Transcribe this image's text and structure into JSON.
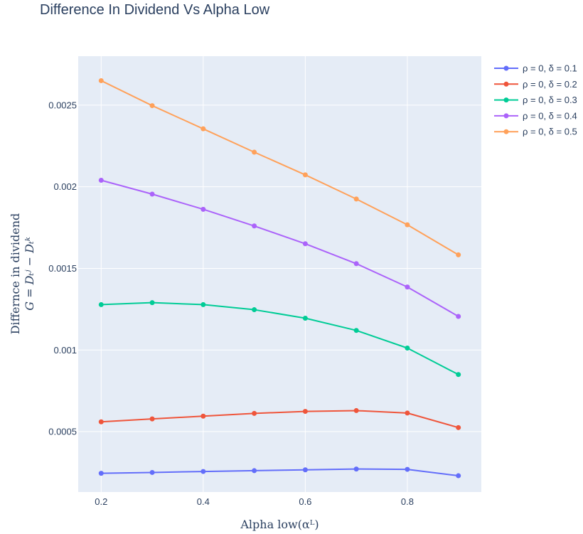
{
  "chart_data": {
    "type": "line",
    "title": "Difference In Dividend Vs Alpha Low",
    "xlabel": "Alpha low(αᴸ)",
    "ylabel_line1": "Differnce in dividend",
    "ylabel_line2": "G = Dₜʲ − Dₜᵏ",
    "x": [
      0.2,
      0.3,
      0.4,
      0.5,
      0.6,
      0.7,
      0.8,
      0.9
    ],
    "xlim": [
      0.155,
      0.945
    ],
    "ylim": [
      0.00013,
      0.0028
    ],
    "xticks": [
      0.2,
      0.4,
      0.6,
      0.8
    ],
    "xtick_labels": [
      "0.2",
      "0.4",
      "0.6",
      "0.8"
    ],
    "yticks": [
      0.0005,
      0.001,
      0.0015,
      0.002,
      0.0025
    ],
    "ytick_labels": [
      "0.0005",
      "0.001",
      "0.0015",
      "0.002",
      "0.0025"
    ],
    "grid": true,
    "legend_position": "top-right",
    "series": [
      {
        "name": "ρ = 0, δ = 0.1",
        "color": "#636efa",
        "values": [
          0.000245,
          0.00025,
          0.000256,
          0.000261,
          0.000266,
          0.000271,
          0.000269,
          0.00023
        ]
      },
      {
        "name": "ρ = 0, δ = 0.2",
        "color": "#EF553B",
        "values": [
          0.00056,
          0.000578,
          0.000595,
          0.000612,
          0.000624,
          0.000629,
          0.000614,
          0.000525
        ]
      },
      {
        "name": "ρ = 0, δ = 0.3",
        "color": "#00cc96",
        "values": [
          0.001278,
          0.00129,
          0.001278,
          0.001247,
          0.001195,
          0.00112,
          0.001012,
          0.00085
        ]
      },
      {
        "name": "ρ = 0, δ = 0.4",
        "color": "#ab63fa",
        "values": [
          0.00204,
          0.001955,
          0.001862,
          0.00176,
          0.001651,
          0.001529,
          0.001386,
          0.001206
        ]
      },
      {
        "name": "ρ = 0, δ = 0.5",
        "color": "#FFA15A",
        "values": [
          0.00265,
          0.002497,
          0.002355,
          0.002212,
          0.002073,
          0.001925,
          0.001767,
          0.001583
        ]
      }
    ]
  }
}
